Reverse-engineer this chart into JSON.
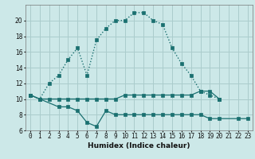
{
  "xlabel": "Humidex (Indice chaleur)",
  "bg_color": "#cce8e8",
  "grid_color": "#aacccc",
  "line_color": "#1a7070",
  "line1_x": [
    0,
    1,
    2,
    3,
    4,
    5,
    6,
    7,
    8,
    9,
    10,
    11,
    12,
    13,
    14,
    15,
    16,
    17,
    18,
    19,
    20
  ],
  "line1_y": [
    10.5,
    10.0,
    12.0,
    13.0,
    15.0,
    16.5,
    13.0,
    17.5,
    19.0,
    20.0,
    20.0,
    21.0,
    21.0,
    20.0,
    19.5,
    16.5,
    14.5,
    13.0,
    11.0,
    10.5,
    10.0
  ],
  "line2_x": [
    0,
    1,
    2,
    3,
    4,
    5,
    6,
    7,
    8,
    9,
    10,
    11,
    12,
    13,
    14,
    15,
    16,
    17,
    18,
    19,
    20
  ],
  "line2_y": [
    10.5,
    10.0,
    10.0,
    10.0,
    10.0,
    10.0,
    10.0,
    10.0,
    10.0,
    10.0,
    10.5,
    10.5,
    10.5,
    10.5,
    10.5,
    10.5,
    10.5,
    10.5,
    11.0,
    11.0,
    10.0
  ],
  "line3_x": [
    0,
    3,
    4,
    5,
    6,
    7,
    8,
    9,
    10,
    11,
    12,
    13,
    14,
    15,
    16,
    17,
    18,
    19,
    20,
    22,
    23
  ],
  "line3_y": [
    10.5,
    9.0,
    9.0,
    8.5,
    7.0,
    6.5,
    8.5,
    8.0,
    8.0,
    8.0,
    8.0,
    8.0,
    8.0,
    8.0,
    8.0,
    8.0,
    8.0,
    7.5,
    7.5,
    7.5,
    7.5
  ],
  "xlim": [
    -0.5,
    23.5
  ],
  "ylim": [
    6,
    22
  ],
  "yticks": [
    6,
    8,
    10,
    12,
    14,
    16,
    18,
    20
  ],
  "xticks": [
    0,
    1,
    2,
    3,
    4,
    5,
    6,
    7,
    8,
    9,
    10,
    11,
    12,
    13,
    14,
    15,
    16,
    17,
    18,
    19,
    20,
    21,
    22,
    23
  ]
}
